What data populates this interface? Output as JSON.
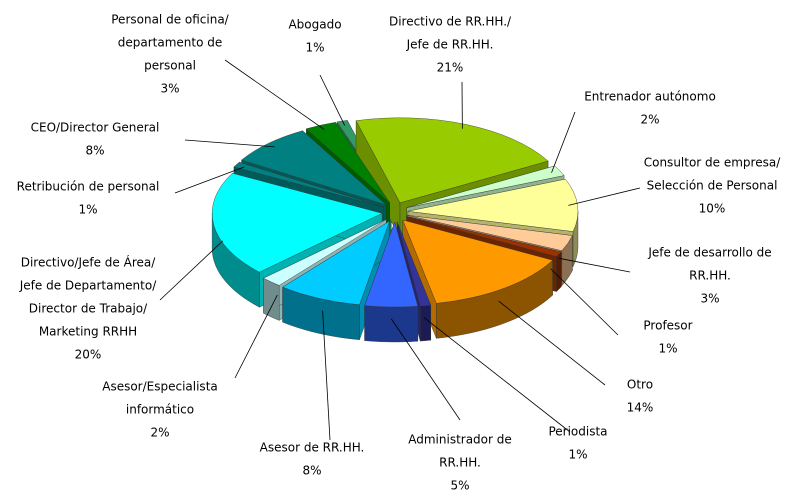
{
  "chart_data": {
    "type": "pie3d",
    "categories": [
      [
        "Directivo de RR.HH./",
        "Jefe de RR.HH."
      ],
      [
        "Entrenador autónomo"
      ],
      [
        "Consultor de empresa/",
        "Selección de Personal"
      ],
      [
        "Jefe de desarrollo de",
        "RR.HH."
      ],
      [
        "Profesor"
      ],
      [
        "Otro"
      ],
      [
        "Periodista"
      ],
      [
        "Administrador de",
        "RR.HH."
      ],
      [
        "Asesor de RR.HH."
      ],
      [
        "Asesor/Especialista",
        "informático"
      ],
      [
        "Directivo/Jefe de Área/",
        "Jefe de Departamento/",
        "Director de Trabajo/",
        "Marketing RRHH"
      ],
      [
        "Retribución de personal"
      ],
      [
        "CEO/Director General"
      ],
      [
        "Personal de oficina/",
        "departamento de",
        "personal"
      ],
      [
        "Abogado"
      ]
    ],
    "values": [
      21,
      2,
      10,
      3,
      1,
      14,
      1,
      5,
      8,
      2,
      20,
      1,
      8,
      3,
      1
    ],
    "value_labels": [
      "21%",
      "2%",
      "10%",
      "3%",
      "1%",
      "14%",
      "1%",
      "5%",
      "8%",
      "2%",
      "20%",
      "1%",
      "8%",
      "3%",
      "1%"
    ],
    "colors": [
      "#99cc00",
      "#ccffcc",
      "#ffff99",
      "#ffcc99",
      "#993300",
      "#ff9900",
      "#333399",
      "#3366ff",
      "#00ccff",
      "#ccffff",
      "#00ffff",
      "#008080",
      "#008080",
      "#008000",
      "#339966"
    ]
  }
}
